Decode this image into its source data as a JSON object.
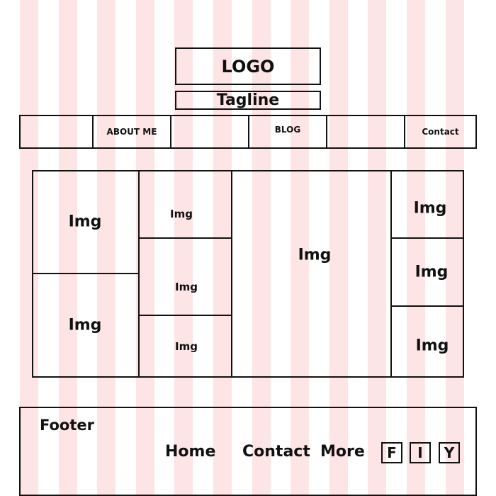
{
  "colors": {
    "stripe": "#fde4e5",
    "line": "#111111",
    "background": "#ffffff"
  },
  "header": {
    "logo": "LOGO",
    "tagline": "Tagline"
  },
  "nav": {
    "items": [
      "",
      "ABOUT ME",
      "",
      "BLOG",
      "",
      "Contact"
    ]
  },
  "gallery": {
    "labels": [
      "Img",
      "Img",
      "Img",
      "Img",
      "Img",
      "Img",
      "Img",
      "Img",
      "Img"
    ]
  },
  "footer": {
    "title": "Footer",
    "links": [
      "Home",
      "Contact",
      "More"
    ],
    "social": [
      "F",
      "I",
      "Y"
    ]
  }
}
